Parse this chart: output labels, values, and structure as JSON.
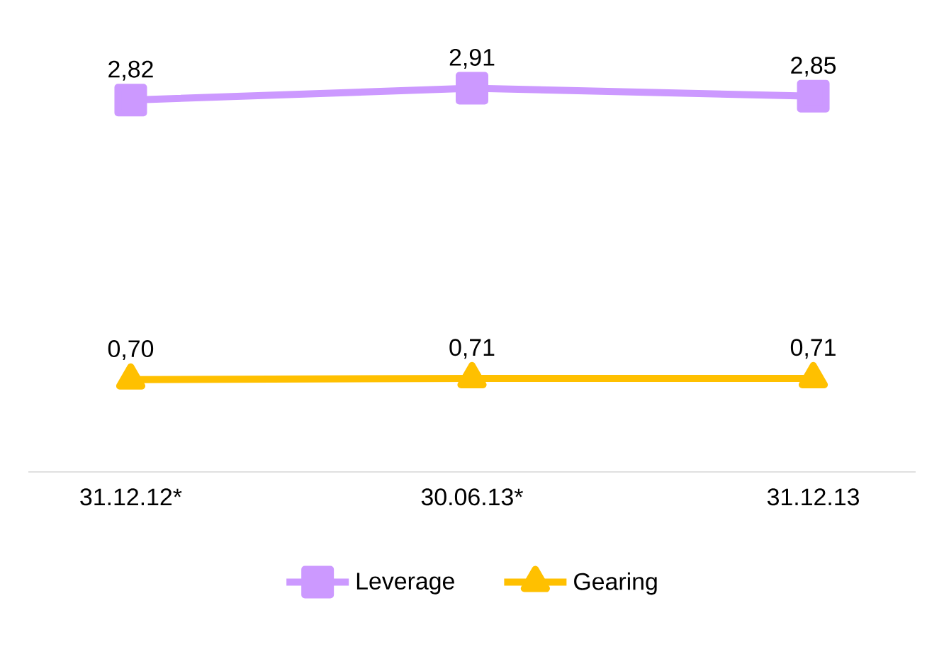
{
  "chart_data": {
    "type": "line",
    "categories": [
      "31.12.12*",
      "30.06.13*",
      "31.12.13"
    ],
    "series": [
      {
        "name": "Leverage",
        "color": "#cc99ff",
        "marker": "square",
        "values": [
          2.82,
          2.91,
          2.85
        ],
        "value_labels": [
          "2,82",
          "2,91",
          "2,85"
        ]
      },
      {
        "name": "Gearing",
        "color": "#ffc000",
        "marker": "triangle",
        "values": [
          0.7,
          0.71,
          0.71
        ],
        "value_labels": [
          "0,70",
          "0,71",
          "0,71"
        ]
      }
    ],
    "tick_labels": "x",
    "grid": false,
    "legend": "bottom"
  }
}
